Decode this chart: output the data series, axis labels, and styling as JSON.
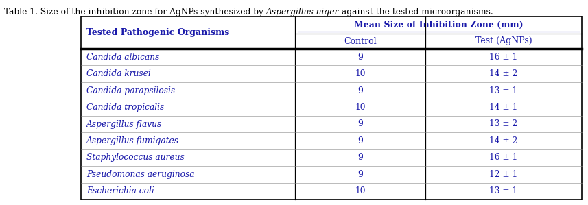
{
  "title_plain": "Table 1. Size of the inhibition zone for AgNPs synthesized by ",
  "title_italic": "Aspergillus niger",
  "title_end": " against the tested microorganisms.",
  "col_header_span": "Mean Size of Inhibition Zone (mm)",
  "col_header1": "Tested Pathogenic Organisms",
  "col_header2": "Control",
  "col_header3": "Test (AgNPs)",
  "rows": [
    {
      "organism": "Candida albicans",
      "control": "9",
      "test": "16 ± 1"
    },
    {
      "organism": "Candida krusei",
      "control": "10",
      "test": "14 ± 2"
    },
    {
      "organism": "Candida parapsilosis",
      "control": "9",
      "test": "13 ± 1"
    },
    {
      "organism": "Candida tropicalis",
      "control": "10",
      "test": "14 ± 1"
    },
    {
      "organism": "Aspergillus flavus",
      "control": "9",
      "test": "13 ± 2"
    },
    {
      "organism": "Aspergillus fumigates",
      "control": "9",
      "test": "14 ± 2"
    },
    {
      "organism": "Staphylococcus aureus",
      "control": "9",
      "test": "16 ± 1"
    },
    {
      "organism": "Pseudomonas aeruginosa",
      "control": "9",
      "test": "12 ± 1"
    },
    {
      "organism": "Escherichia coli",
      "control": "10",
      "test": "13 ± 1"
    }
  ],
  "text_color": "#1a1aaa",
  "title_color": "#000000",
  "border_color": "#000000",
  "font_size_title": 8.8,
  "font_size_header_span": 9.0,
  "font_size_header": 9.0,
  "font_size_data": 8.8,
  "fig_width": 8.57,
  "fig_height": 2.99,
  "dpi": 100
}
